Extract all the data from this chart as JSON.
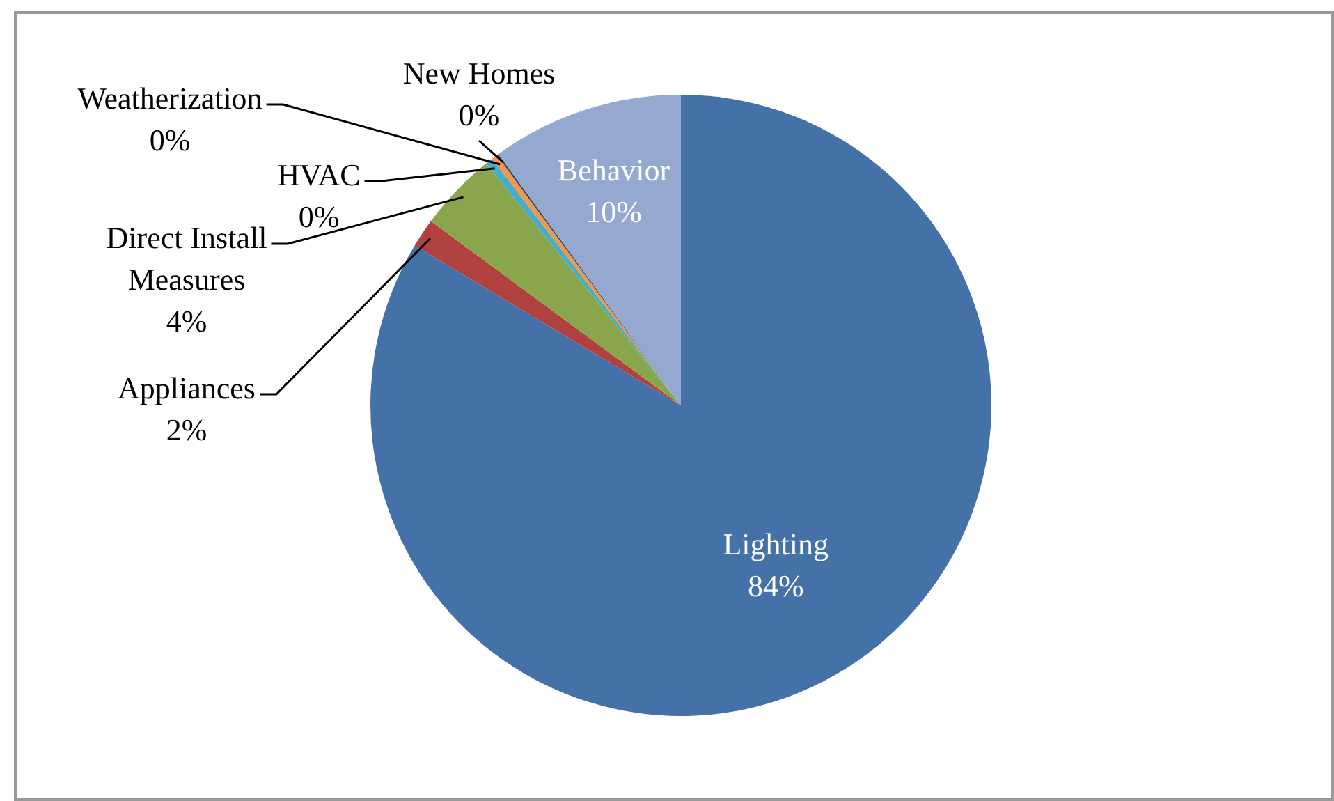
{
  "chart_data": {
    "type": "pie",
    "categories": [
      "Lighting",
      "Appliances",
      "Direct Install Measures",
      "HVAC",
      "Weatherization",
      "New Homes",
      "Behavior"
    ],
    "values": [
      83.6,
      1.5,
      4.1,
      0.4,
      0.3,
      0.1,
      10.0
    ],
    "value_labels": [
      "84%",
      "2%",
      "4%",
      "0%",
      "0%",
      "0%",
      "10%"
    ],
    "colors": [
      "#4472a8",
      "#b0413e",
      "#8aa64c",
      "#4bacc6",
      "#f79646",
      "#2c4d75",
      "#94a8d0"
    ],
    "legend": false
  }
}
